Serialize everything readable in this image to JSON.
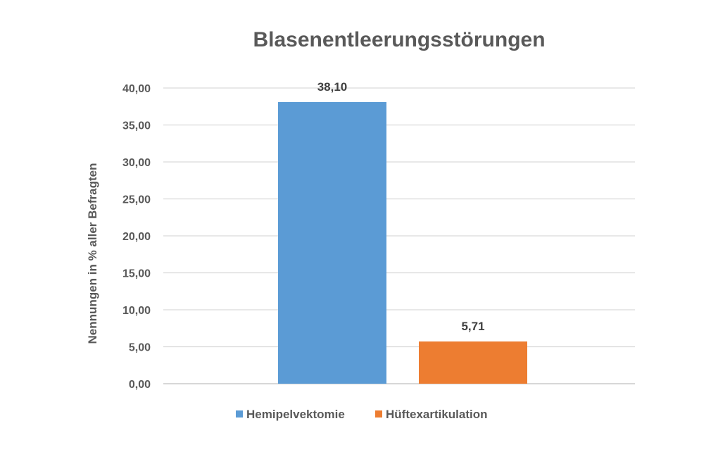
{
  "chart_data": {
    "type": "bar",
    "title": "Blasenentleerungsstörungen",
    "ylabel": "Nennungen in % aller Befragten",
    "xlabel": "",
    "ylim": [
      0,
      40
    ],
    "y_ticks": [
      "0,00",
      "5,00",
      "10,00",
      "15,00",
      "20,00",
      "25,00",
      "30,00",
      "35,00",
      "40,00"
    ],
    "grid": true,
    "legend_position": "bottom",
    "series": [
      {
        "name": "Hemipelvektomie",
        "value": 38.1,
        "label": "38,10",
        "color": "#5B9BD5"
      },
      {
        "name": "Hüftexartikulation",
        "value": 5.71,
        "label": "5,71",
        "color": "#ED7D31"
      }
    ]
  }
}
